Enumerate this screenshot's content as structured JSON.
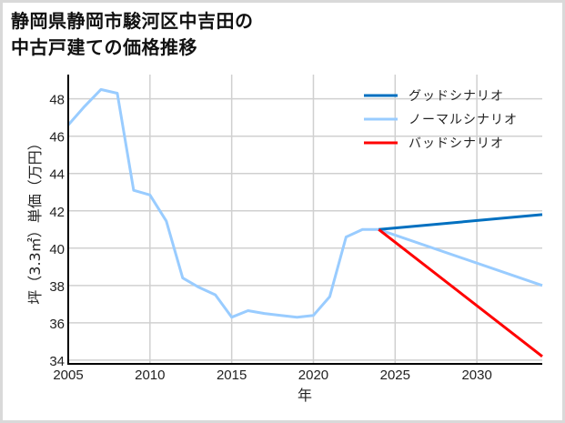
{
  "title": "静岡県静岡市駿河区中吉田の\n中古戸建ての価格推移",
  "chart_data": {
    "type": "line",
    "title": "静岡県静岡市駿河区中吉田の中古戸建ての価格推移",
    "xlabel": "年",
    "ylabel": "坪（3.3㎡）単価（万円）",
    "xlim": [
      2005,
      2034
    ],
    "ylim": [
      33.8,
      49.3
    ],
    "xticks": [
      2005,
      2010,
      2015,
      2020,
      2025,
      2030
    ],
    "yticks": [
      34,
      36,
      38,
      40,
      42,
      44,
      46,
      48
    ],
    "grid": true,
    "legend_position": "upper right",
    "series": [
      {
        "name": "グッドシナリオ",
        "color": "#0070c0",
        "x": [
          2024,
          2034
        ],
        "values": [
          41.0,
          41.8
        ]
      },
      {
        "name": "ノーマルシナリオ",
        "color": "#99ccff",
        "x": [
          2005,
          2006,
          2007,
          2008,
          2009,
          2010,
          2011,
          2012,
          2013,
          2014,
          2015,
          2016,
          2017,
          2018,
          2019,
          2020,
          2021,
          2022,
          2023,
          2024,
          2034
        ],
        "values": [
          46.6,
          47.6,
          48.5,
          48.3,
          43.1,
          42.85,
          41.45,
          38.4,
          37.9,
          37.5,
          36.3,
          36.65,
          36.5,
          36.4,
          36.3,
          36.4,
          37.4,
          40.6,
          41.0,
          41.0,
          38.0
        ]
      },
      {
        "name": "バッドシナリオ",
        "color": "#ff0000",
        "x": [
          2024,
          2034
        ],
        "values": [
          41.0,
          34.2
        ]
      }
    ]
  }
}
